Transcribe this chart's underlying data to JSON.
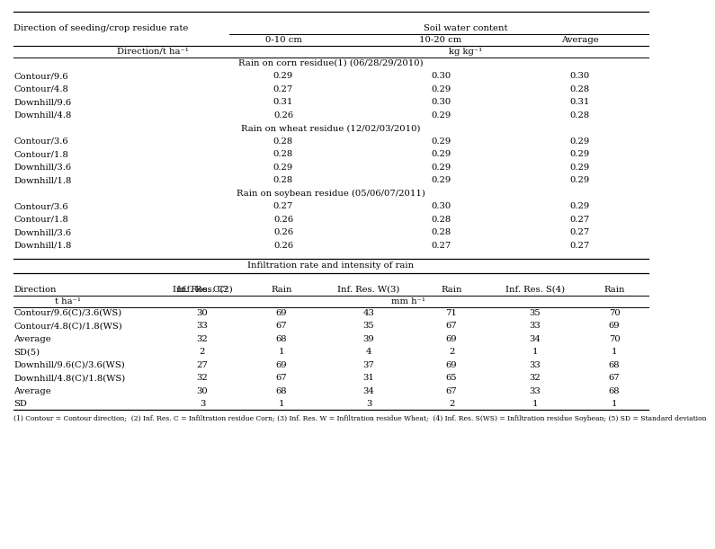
{
  "top_header1": "Soil water content",
  "top_header_col1": "Direction of seeding/crop residue rate",
  "sub_headers": [
    "0-10 cm",
    "10-20 cm",
    "Average"
  ],
  "section1_title": "Rain on corn residue",
  "section1_sup": "(1)",
  "section1_date": " (06/28/29/2010)",
  "section1_rows": [
    [
      "Contour/9.6",
      "0.29",
      "0.30",
      "0.30"
    ],
    [
      "Contour/4.8",
      "0.27",
      "0.29",
      "0.28"
    ],
    [
      "Downhill/9.6",
      "0.31",
      "0.30",
      "0.31"
    ],
    [
      "Downhill/4.8",
      "0.26",
      "0.29",
      "0.28"
    ]
  ],
  "section2_title": "Rain on wheat residue (12/02/03/2010)",
  "section2_rows": [
    [
      "Contour/3.6",
      "0.28",
      "0.29",
      "0.29"
    ],
    [
      "Contour/1.8",
      "0.28",
      "0.29",
      "0.29"
    ],
    [
      "Downhill/3.6",
      "0.29",
      "0.29",
      "0.29"
    ],
    [
      "Downhill/1.8",
      "0.28",
      "0.29",
      "0.29"
    ]
  ],
  "section3_title": "Rain on soybean residue (05/06/07/2011)",
  "section3_rows": [
    [
      "Contour/3.6",
      "0.27",
      "0.30",
      "0.29"
    ],
    [
      "Contour/1.8",
      "0.26",
      "0.28",
      "0.27"
    ],
    [
      "Downhill/3.6",
      "0.26",
      "0.28",
      "0.27"
    ],
    [
      "Downhill/1.8",
      "0.26",
      "0.27",
      "0.27"
    ]
  ],
  "infil_title": "Infiltration rate and intensity of rain",
  "infil_rows": [
    [
      "Contour/9.6(C)/3.6(WS)",
      "30",
      "69",
      "43",
      "71",
      "35",
      "70"
    ],
    [
      "Contour/4.8(C)/1.8(WS)",
      "33",
      "67",
      "35",
      "67",
      "33",
      "69"
    ],
    [
      "Average",
      "32",
      "68",
      "39",
      "69",
      "34",
      "70"
    ],
    [
      "SD(5)",
      "2",
      "1",
      "4",
      "2",
      "1",
      "1"
    ],
    [
      "Downhill/9.6(C)/3.6(WS)",
      "27",
      "69",
      "37",
      "69",
      "33",
      "68"
    ],
    [
      "Downhill/4.8(C)/1.8(WS)",
      "32",
      "67",
      "31",
      "65",
      "32",
      "67"
    ],
    [
      "Average",
      "30",
      "68",
      "34",
      "67",
      "33",
      "68"
    ],
    [
      "SD",
      "3",
      "1",
      "3",
      "2",
      "1",
      "1"
    ]
  ],
  "footnote": "(1) Contour = Contour direction;  (2) Inf. Res. C = Infiltration residue Corn; (3) Inf. Res. W = Infiltration residue Wheat;  (4) Inf. Res. S(WS) = Infiltration residue Soybean; (5) SD = Standard deviation",
  "bg_color": "#ffffff",
  "text_color": "#000000",
  "line_color": "#000000"
}
